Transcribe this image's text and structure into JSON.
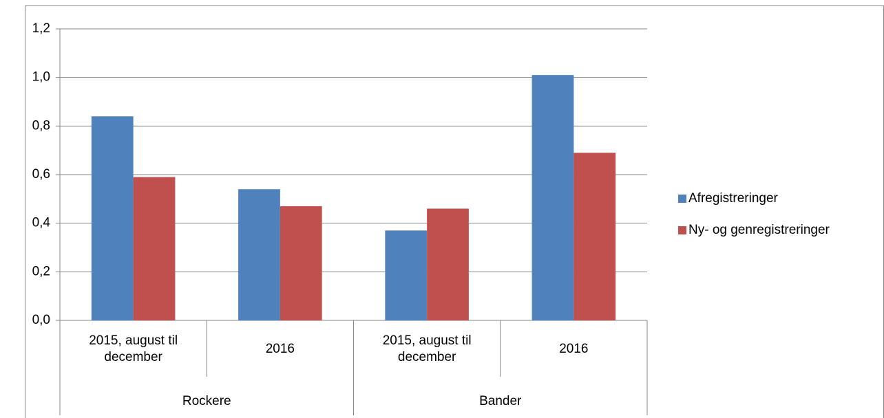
{
  "chart_data": {
    "type": "bar",
    "groups": [
      {
        "label": "Rockere",
        "categories": [
          "2015, august til december",
          "2016"
        ]
      },
      {
        "label": "Bander",
        "categories": [
          "2015, august til december",
          "2016"
        ]
      }
    ],
    "series": [
      {
        "name": "Afregistreringer",
        "color": "#4f81bd",
        "values": [
          0.84,
          0.54,
          0.37,
          1.01
        ]
      },
      {
        "name": "Ny- og genregistreringer",
        "color": "#c0504d",
        "values": [
          0.59,
          0.47,
          0.46,
          0.69
        ]
      }
    ],
    "ylim": [
      0,
      1.2
    ],
    "yticks": [
      {
        "value": 0,
        "label": "0,0"
      },
      {
        "value": 0.2,
        "label": "0,2"
      },
      {
        "value": 0.4,
        "label": "0,4"
      },
      {
        "value": 0.6,
        "label": "0,6"
      },
      {
        "value": 0.8,
        "label": "0,8"
      },
      {
        "value": 1.0,
        "label": "1,0"
      },
      {
        "value": 1.2,
        "label": "1,2"
      }
    ],
    "grid": true,
    "legend": "right"
  }
}
